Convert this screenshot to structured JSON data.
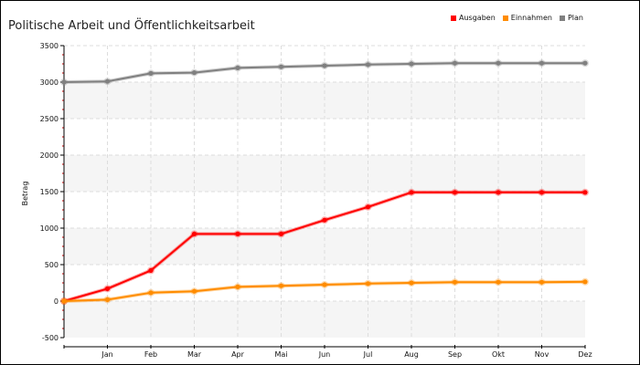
{
  "chart_data": {
    "type": "line",
    "title": "Politische Arbeit und Öffentlichkeitsarbeit",
    "xlabel": "",
    "ylabel": "Betrag",
    "categories": [
      "",
      "Jan",
      "Feb",
      "Mar",
      "Apr",
      "Mai",
      "Jun",
      "Jul",
      "Aug",
      "Sep",
      "Okt",
      "Nov",
      "Dez"
    ],
    "ylim": [
      -500,
      3500
    ],
    "yticks": [
      -500,
      0,
      500,
      1000,
      1500,
      2000,
      2500,
      3000,
      3500
    ],
    "grid": true,
    "legend_position": "top-right",
    "series": [
      {
        "name": "Ausgaben",
        "color": "#ff0000",
        "values": [
          0,
          170,
          420,
          920,
          920,
          920,
          1110,
          1290,
          1490,
          1490,
          1490,
          1490,
          1490
        ]
      },
      {
        "name": "Einnahmen",
        "color": "#ff8c00",
        "values": [
          0,
          20,
          115,
          135,
          195,
          210,
          225,
          240,
          250,
          260,
          260,
          260,
          265
        ]
      },
      {
        "name": "Plan",
        "color": "#808080",
        "values": [
          3000,
          3010,
          3120,
          3130,
          3195,
          3210,
          3225,
          3240,
          3250,
          3260,
          3260,
          3260,
          3260
        ]
      }
    ]
  }
}
